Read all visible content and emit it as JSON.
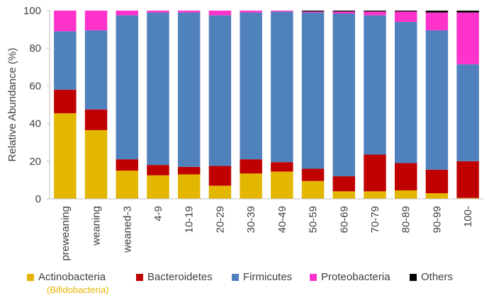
{
  "chart_data": {
    "type": "bar",
    "stacked": true,
    "title": "",
    "xlabel": "",
    "ylabel": "Relative Abundance (%)",
    "ylim": [
      0,
      100
    ],
    "yticks": [
      "0",
      "20",
      "40",
      "60",
      "80",
      "100"
    ],
    "grid": false,
    "legend_position": "bottom",
    "categories": [
      "preweaning",
      "weaning",
      "weaned-3",
      "4-9",
      "10-19",
      "20-29",
      "30-39",
      "40-49",
      "50-59",
      "60-69",
      "70-79",
      "80-89",
      "90-99",
      "100-"
    ],
    "series": [
      {
        "name": "Actinobacteria",
        "color": "#e3b600",
        "values": [
          45.5,
          36.5,
          15.0,
          12.5,
          13.0,
          7.0,
          13.5,
          14.5,
          9.5,
          4.0,
          4.0,
          4.5,
          3.0,
          0.5
        ]
      },
      {
        "name": "Bacteroidetes",
        "color": "#c00000",
        "values": [
          12.5,
          11.0,
          6.0,
          5.5,
          4.0,
          10.5,
          7.5,
          5.0,
          6.5,
          8.0,
          19.5,
          14.5,
          12.5,
          19.5
        ]
      },
      {
        "name": "Firmicutes",
        "color": "#4f81bd",
        "values": [
          31.0,
          42.0,
          76.5,
          81.0,
          82.0,
          80.0,
          78.0,
          80.0,
          83.0,
          86.5,
          74.0,
          75.0,
          74.0,
          51.5
        ]
      },
      {
        "name": "Proteobacteria",
        "color": "#ff33cc",
        "values": [
          11.0,
          10.5,
          2.5,
          1.0,
          1.0,
          2.5,
          1.0,
          0.5,
          0.5,
          1.0,
          2.0,
          5.5,
          9.5,
          27.5
        ]
      },
      {
        "name": "Others",
        "color": "#000000",
        "values": [
          0.0,
          0.0,
          0.0,
          0.0,
          0.0,
          0.0,
          0.0,
          0.0,
          0.5,
          0.5,
          0.5,
          0.5,
          1.0,
          1.0
        ]
      }
    ],
    "legend_note": "(Bifidobacteria)",
    "legend_note_color": "#e3b600"
  }
}
